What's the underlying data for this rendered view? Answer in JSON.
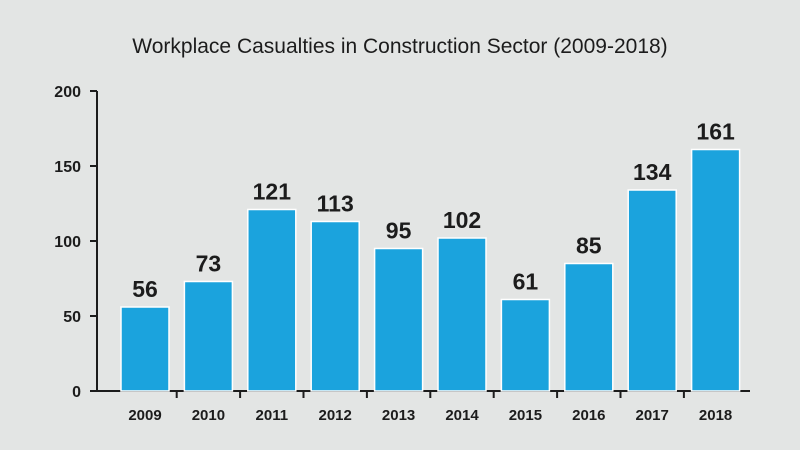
{
  "chart_data": {
    "type": "bar",
    "title": "Workplace Casualties in Construction Sector (2009-2018)",
    "xlabel": "",
    "ylabel": "",
    "categories": [
      "2009",
      "2010",
      "2011",
      "2012",
      "2013",
      "2014",
      "2015",
      "2016",
      "2017",
      "2018"
    ],
    "values": [
      56,
      73,
      121,
      113,
      95,
      102,
      61,
      85,
      134,
      161
    ],
    "ylim": [
      0,
      200
    ],
    "yticks": [
      0,
      50,
      100,
      150,
      200
    ],
    "grid": false,
    "legend": "none",
    "data_labels": true,
    "colors": {
      "background": "#e3e5e4",
      "bar": "#1ba3dd",
      "text": "#1c1c1c"
    }
  }
}
